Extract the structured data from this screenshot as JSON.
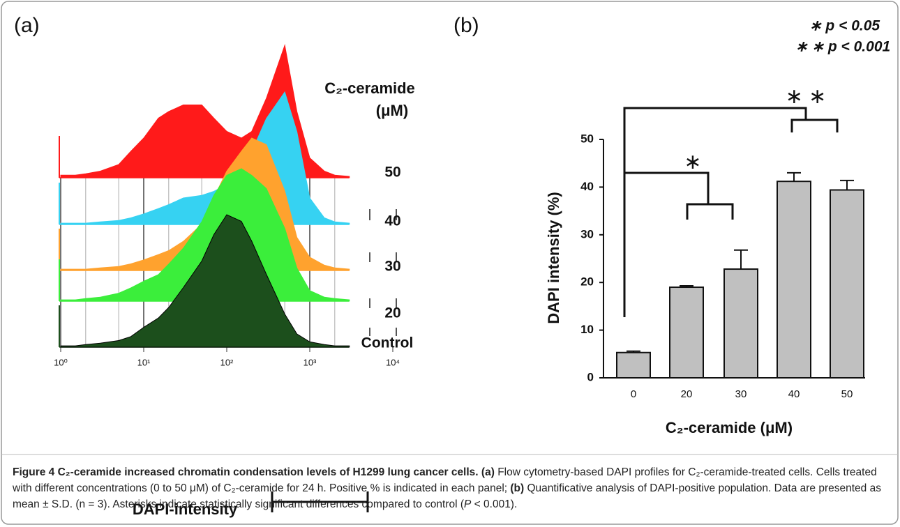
{
  "chart_data": [
    {
      "type": "area",
      "label": "(a)",
      "log_x": true,
      "legend_title": "C₂-ceramide",
      "legend_unit": "(μM)",
      "x_label": "DAPI-intensity",
      "xlim": [
        1,
        10000
      ],
      "xticks": [
        {
          "value": 1,
          "label": "10⁰"
        },
        {
          "value": 10,
          "label": "10¹"
        },
        {
          "value": 100,
          "label": "10²"
        },
        {
          "value": 1000,
          "label": "10³"
        },
        {
          "value": 10000,
          "label": "10⁴"
        }
      ],
      "x": [
        1,
        1.5,
        2,
        3,
        5,
        7,
        10,
        15,
        20,
        30,
        50,
        70,
        100,
        150,
        200,
        300,
        500,
        700,
        1000,
        1500,
        2000,
        3000
      ],
      "series": [
        {
          "name": "Control",
          "color": "#1c4f1c",
          "values": [
            1,
            1,
            2,
            3,
            5,
            8,
            15,
            22,
            30,
            45,
            65,
            85,
            100,
            95,
            80,
            55,
            25,
            10,
            4,
            2,
            1,
            1
          ]
        },
        {
          "name": "20",
          "color": "#3bee3b",
          "values": [
            1,
            1,
            2,
            3,
            6,
            10,
            15,
            20,
            28,
            40,
            60,
            80,
            95,
            100,
            95,
            85,
            55,
            25,
            8,
            3,
            2,
            1
          ]
        },
        {
          "name": "30",
          "color": "#ffa22e",
          "values": [
            1,
            1,
            1,
            2,
            3,
            5,
            8,
            12,
            15,
            22,
            35,
            55,
            75,
            90,
            100,
            95,
            60,
            25,
            10,
            4,
            2,
            1
          ]
        },
        {
          "name": "40",
          "color": "#36d2f2",
          "values": [
            1,
            1,
            1,
            2,
            3,
            5,
            8,
            12,
            15,
            20,
            22,
            25,
            30,
            40,
            55,
            80,
            100,
            70,
            20,
            5,
            2,
            1
          ]
        },
        {
          "name": "50",
          "color": "#ff1a1a",
          "values": [
            2,
            2,
            3,
            5,
            10,
            20,
            30,
            45,
            50,
            55,
            55,
            45,
            35,
            30,
            35,
            60,
            100,
            50,
            15,
            5,
            2,
            1
          ]
        }
      ]
    },
    {
      "type": "bar",
      "label": "(b)",
      "y_label": "DAPI intensity (%)",
      "x_label": "C₂-ceramide (μM)",
      "categories": [
        "0",
        "20",
        "30",
        "40",
        "50"
      ],
      "values": [
        5.3,
        19,
        22.8,
        41.2,
        39.4
      ],
      "errors": [
        0.3,
        0.3,
        4.0,
        1.8,
        2.0
      ],
      "color": "#c0c0c0",
      "ylim": [
        0,
        50
      ],
      "yticks": [
        0,
        10,
        20,
        30,
        40,
        50
      ],
      "annotations": [
        "∗",
        "∗ ∗"
      ],
      "significance_legend": [
        "∗ p < 0.05",
        "∗ ∗ p < 0.001"
      ]
    }
  ],
  "caption": [
    "Figure 4 C₂-ceramide increased chromatin condensation levels of H1299 lung cancer cells.",
    "(a)",
    "Flow cytometry-based DAPI profiles for C₂-ceramide-treated cells. Cells treated with different concentrations (0 to 50 μM) of C₂-ceramide for 24 h. Positive % is indicated in each panel;",
    "(b)",
    "Quantificative analysis of DAPI-positive population. Data are presented as mean ± S.D. (n = 3). Asterisks indicate statistically significant differences compared to control (",
    "P",
    " < 0.001)."
  ]
}
